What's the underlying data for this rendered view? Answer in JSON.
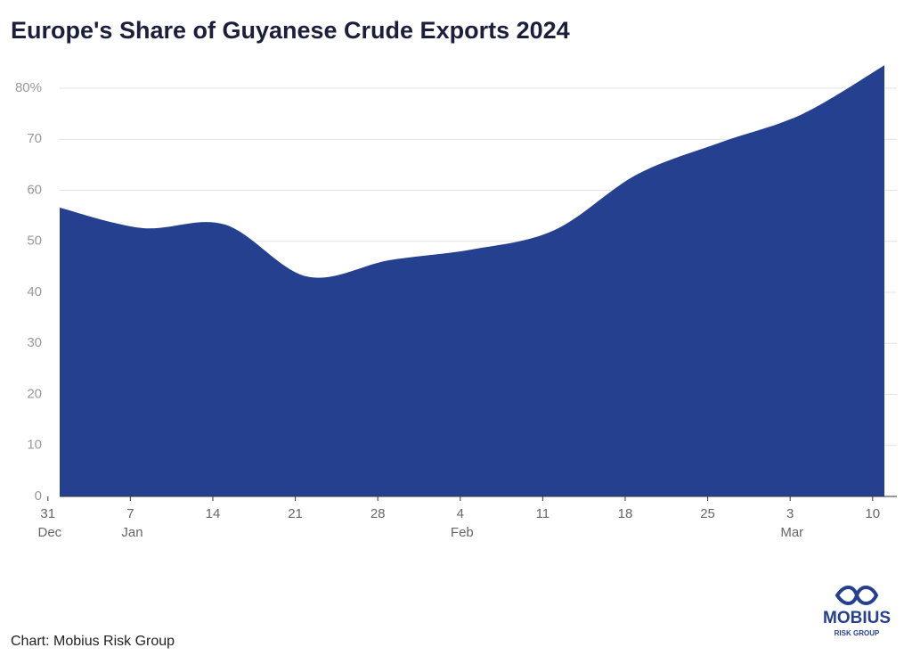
{
  "chart_data": {
    "type": "area",
    "title": "Europe's Share of Guyanese Crude Exports 2024",
    "source": "Chart: Mobius Risk Group",
    "brand": {
      "name": "MOBIUS",
      "tagline": "RISK GROUP"
    },
    "x": [
      1,
      8,
      15,
      22,
      29,
      36,
      43,
      50,
      57,
      64,
      71
    ],
    "series": [
      {
        "name": "Europe's share",
        "color": "#25408f",
        "values": [
          56.6,
          52.6,
          53.3,
          43.1,
          46.3,
          48.4,
          52.2,
          63.1,
          69.3,
          74.9,
          84.5
        ]
      }
    ],
    "xlim": [
      1,
      71
    ],
    "xticks": [
      {
        "value": 0,
        "label": "31 Dec"
      },
      {
        "value": 7,
        "label": "7 Jan"
      },
      14,
      21,
      28,
      {
        "value": 35,
        "label": "4 Feb"
      },
      {
        "value": 42,
        "label": "11"
      },
      {
        "value": 49,
        "label": "18"
      },
      {
        "value": 56,
        "label": "25"
      },
      {
        "value": 63,
        "label": "3 Mar"
      },
      {
        "value": 70,
        "label": "10"
      }
    ],
    "ylim": [
      0,
      85
    ],
    "yticks": [
      0,
      10,
      20,
      30,
      40,
      50,
      60,
      70,
      {
        "value": 80,
        "label": "80%"
      }
    ],
    "grid": true
  }
}
